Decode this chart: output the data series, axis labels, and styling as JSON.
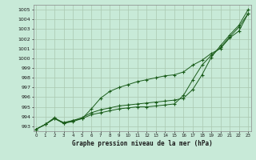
{
  "title": "Graphe pression niveau de la mer (hPa)",
  "bg_color": "#c8ead8",
  "grid_color": "#aac8b0",
  "line_color": "#1a5c1a",
  "ylim": [
    992.5,
    1005.5
  ],
  "xlim": [
    -0.3,
    23.3
  ],
  "yticks": [
    993,
    994,
    995,
    996,
    997,
    998,
    999,
    1000,
    1001,
    1002,
    1003,
    1004,
    1005
  ],
  "xticks": [
    0,
    1,
    2,
    3,
    4,
    5,
    6,
    7,
    8,
    9,
    10,
    11,
    12,
    13,
    14,
    15,
    16,
    17,
    18,
    19,
    20,
    21,
    22,
    23
  ],
  "series1": [
    992.7,
    993.2,
    993.8,
    993.4,
    993.6,
    993.8,
    994.2,
    994.4,
    994.6,
    994.8,
    994.9,
    995.0,
    995.0,
    995.1,
    995.2,
    995.3,
    996.2,
    997.8,
    999.3,
    1000.3,
    1001.1,
    1002.2,
    1003.2,
    1004.6
  ],
  "series2": [
    992.7,
    993.2,
    993.9,
    993.3,
    993.6,
    993.9,
    994.4,
    994.7,
    994.9,
    995.1,
    995.2,
    995.3,
    995.4,
    995.5,
    995.6,
    995.7,
    995.9,
    996.8,
    998.3,
    1000.1,
    1001.3,
    1002.4,
    1003.4,
    1005.0
  ],
  "series3": [
    992.7,
    993.2,
    993.8,
    993.3,
    993.5,
    993.8,
    994.8,
    995.9,
    996.6,
    997.0,
    997.3,
    997.6,
    997.8,
    998.0,
    998.2,
    998.3,
    998.6,
    999.3,
    999.8,
    1000.5,
    1001.0,
    1002.1,
    1002.8,
    1004.6
  ]
}
